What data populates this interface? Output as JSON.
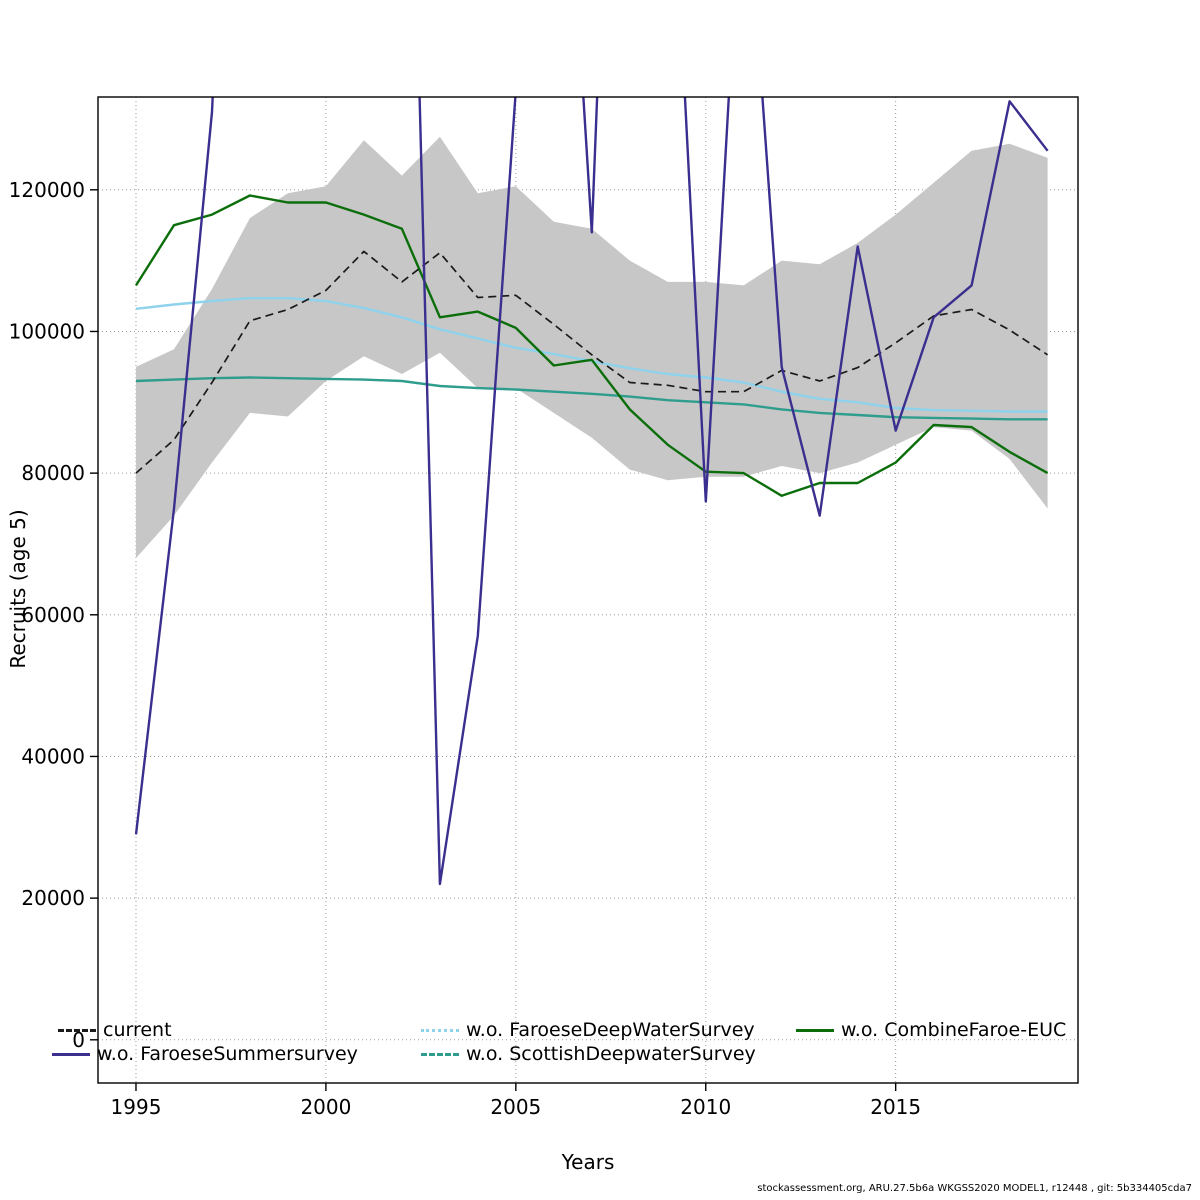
{
  "footer": "stockassessment.org, ARU.27.5b6a WKGSS2020 MODEL1, r12448 , git: 5b334405cda7",
  "chart_data": {
    "type": "line",
    "title": "",
    "xlabel": "Years",
    "ylabel": "Recruits (age 5)",
    "xlim": [
      1994.0,
      2019.8
    ],
    "ylim": [
      -6100,
      133100
    ],
    "x_ticks": [
      1995,
      2000,
      2005,
      2010,
      2015
    ],
    "y_ticks": [
      0,
      20000,
      40000,
      60000,
      80000,
      100000,
      120000
    ],
    "grid": "dotted",
    "grid_color": "#9b9b9b",
    "legend_position": "bottom-inside",
    "x": [
      1995,
      1996,
      1997,
      1998,
      1999,
      2000,
      2001,
      2002,
      2003,
      2004,
      2005,
      2006,
      2007,
      2008,
      2009,
      2010,
      2011,
      2012,
      2013,
      2014,
      2015,
      2016,
      2017,
      2018,
      2019
    ],
    "band": {
      "color": "#c7c7c7",
      "lower": [
        68000,
        74000,
        81500,
        88500,
        88000,
        93000,
        96500,
        94000,
        97000,
        92000,
        92000,
        88500,
        85000,
        80500,
        79000,
        79500,
        79500,
        81000,
        80000,
        81500,
        84000,
        86500,
        86000,
        82000,
        75000
      ],
      "upper": [
        95000,
        97500,
        106000,
        116000,
        119500,
        120500,
        127000,
        122000,
        127500,
        119500,
        120500,
        115500,
        114500,
        110000,
        107000,
        107000,
        106500,
        110000,
        109500,
        112500,
        116500,
        121000,
        125500,
        126500,
        124500
      ]
    },
    "series": [
      {
        "name": "current",
        "color": "#1a1a1a",
        "dash": "dashed",
        "legend_dash": "dashed",
        "width": 1.7,
        "values": [
          80000,
          84700,
          92800,
          101500,
          103100,
          105800,
          111300,
          107000,
          111100,
          104800,
          105100,
          101000,
          96700,
          92800,
          92400,
          91500,
          91500,
          94500,
          93000,
          94900,
          98400,
          102200,
          103100,
          100200,
          96700
        ]
      },
      {
        "name": "w.o. FaroeseSummersurvey",
        "color": "#3a2f8f",
        "dash": "solid",
        "legend_dash": "solid",
        "width": 2.4,
        "values": [
          29000,
          75000,
          131000,
          250000,
          250000,
          250000,
          250000,
          230000,
          22000,
          57000,
          134000,
          200000,
          114000,
          250000,
          180000,
          76000,
          170000,
          95000,
          74000,
          112000,
          86000,
          102000,
          106500,
          132500,
          125500
        ]
      },
      {
        "name": "w.o. FaroeseDeepWaterSurvey",
        "color": "#8ed2ec",
        "dash": "solid",
        "legend_dash": "dotted",
        "width": 2.4,
        "values": [
          103200,
          103800,
          104300,
          104700,
          104700,
          104300,
          103300,
          102000,
          100300,
          99000,
          97700,
          96800,
          95800,
          94800,
          94000,
          93500,
          92800,
          91500,
          90500,
          90000,
          89200,
          88900,
          88800,
          88700,
          88700
        ]
      },
      {
        "name": "w.o. ScottishDeepwaterSurvey",
        "color": "#2f9d8d",
        "dash": "solid",
        "legend_dash": "dashed",
        "width": 2.4,
        "values": [
          93000,
          93200,
          93400,
          93500,
          93400,
          93300,
          93200,
          93000,
          92300,
          92000,
          91800,
          91500,
          91200,
          90800,
          90300,
          90000,
          89700,
          89000,
          88500,
          88200,
          87900,
          87800,
          87700,
          87600,
          87600
        ]
      },
      {
        "name": "w.o. CombineFaroe-EUC",
        "color": "#0b6e0b",
        "dash": "solid",
        "legend_dash": "solid",
        "width": 2.4,
        "values": [
          106500,
          115000,
          116500,
          119200,
          118200,
          118200,
          116500,
          114500,
          102000,
          102800,
          100500,
          95200,
          96000,
          89000,
          84000,
          80200,
          80000,
          76800,
          78600,
          78600,
          81500,
          86800,
          86500,
          83000,
          80000
        ]
      }
    ]
  }
}
